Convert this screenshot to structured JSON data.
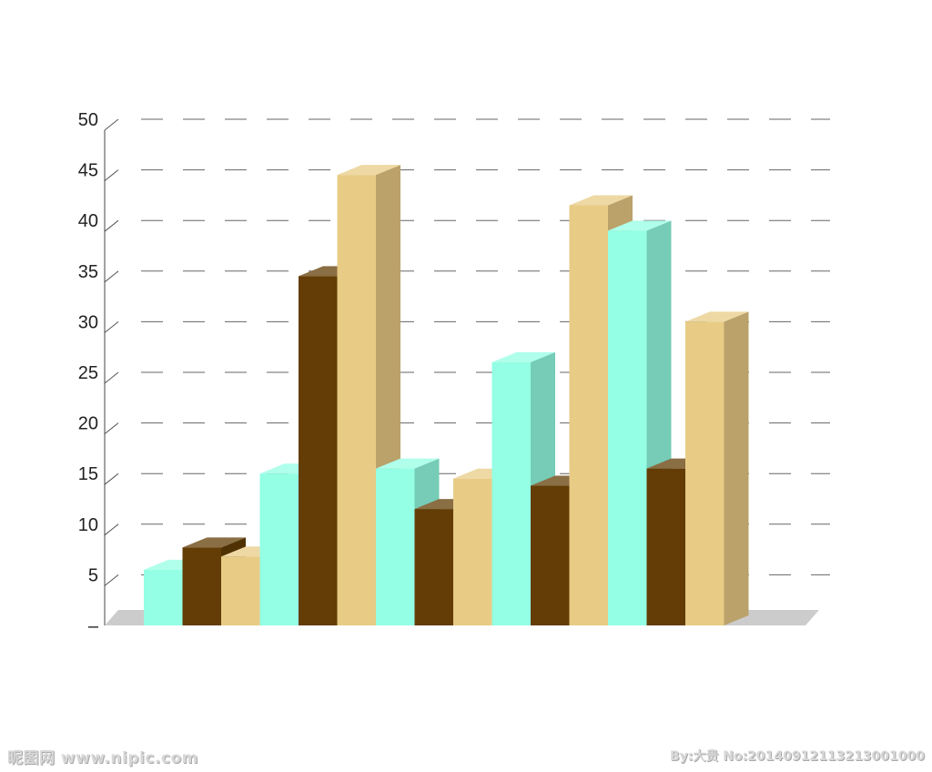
{
  "chart_data": {
    "type": "bar",
    "title": "",
    "xlabel": "",
    "ylabel": "",
    "ylim": [
      0,
      50
    ],
    "yticks": [
      "50",
      "45",
      "40",
      "35",
      "30",
      "25",
      "20",
      "15",
      "10",
      "5",
      "–"
    ],
    "categories": [
      "",
      "",
      "",
      "",
      ""
    ],
    "series": [
      {
        "values": [
          5.5,
          15,
          15.5,
          26,
          39
        ],
        "color": "#94ffe4"
      },
      {
        "values": [
          7.7,
          34.5,
          11.5,
          13.8,
          15.5
        ],
        "color": "#633d05"
      },
      {
        "values": [
          6.8,
          44.5,
          14.5,
          41.5,
          30
        ],
        "color": "#e8cb85"
      }
    ],
    "grid": true,
    "style": "3d-bars"
  },
  "watermark": {
    "left": "昵图网 www.nipic.com",
    "right": "By:大贵 No:20140912113213001000"
  }
}
